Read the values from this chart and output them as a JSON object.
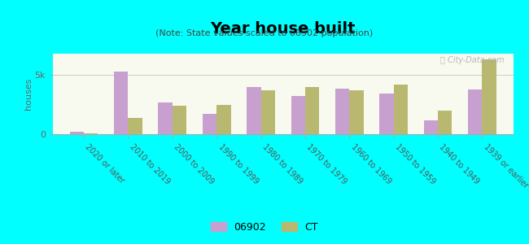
{
  "categories": [
    "2020 or later",
    "2010 to 2019",
    "2000 to 2009",
    "1990 to 1999",
    "1980 to 1989",
    "1970 to 1979",
    "1960 to 1969",
    "1950 to 1959",
    "1940 to 1949",
    "1939 or earlier"
  ],
  "values_06902": [
    200,
    5300,
    2700,
    1700,
    4000,
    3200,
    3850,
    3450,
    1200,
    3800
  ],
  "values_ct": [
    50,
    1400,
    2400,
    2500,
    3700,
    4000,
    3700,
    4200,
    2000,
    6300
  ],
  "color_06902": "#c8a0d0",
  "color_ct": "#b8b870",
  "title": "Year house built",
  "subtitle": "(Note: State values scaled to 06902 population)",
  "ylabel": "houses",
  "ytick_labels": [
    "0",
    "5k"
  ],
  "ytick_values": [
    0,
    5000
  ],
  "ylim": [
    0,
    6800
  ],
  "plot_bg_top": "#f0f5e0",
  "plot_bg_bottom": "#ffffff",
  "outer_background": "#00ffff",
  "watermark": "ⓘ City-Data.com",
  "legend_06902": "06902",
  "legend_ct": "CT",
  "bar_width": 0.32
}
